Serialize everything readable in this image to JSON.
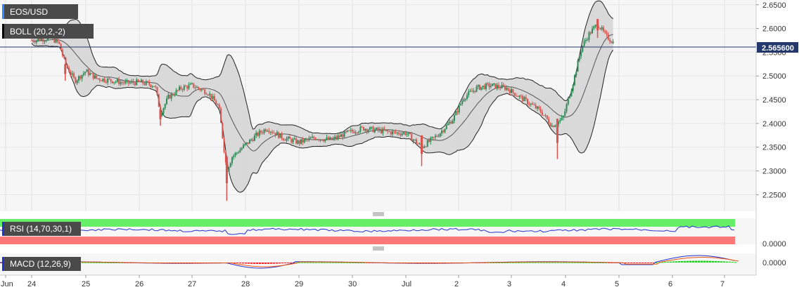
{
  "chart_data": {
    "type": "candlestick",
    "symbol": "EOS/USD",
    "indicators": {
      "bollinger": "BOLL (20,2,-2)",
      "rsi": "RSI (14,70,30,1)",
      "macd": "MACD (12,26,9)"
    },
    "current_price": "2.565600",
    "x_ticks": [
      "Jun",
      "24",
      "25",
      "26",
      "27",
      "28",
      "29",
      "30",
      "Jul",
      "2",
      "3",
      "4",
      "5",
      "6",
      "7"
    ],
    "y_ticks": [
      "2.6500",
      "2.6000",
      "2.5500",
      "2.5000",
      "2.4500",
      "2.4000",
      "2.3500",
      "2.3000",
      "2.2500"
    ],
    "y_range": [
      2.215,
      2.66
    ],
    "rsi_axis_label": "0.0000",
    "macd_axis_label": "0.0000",
    "price_path": [
      [
        0.0,
        2.575
      ],
      [
        0.35,
        2.58
      ],
      [
        0.5,
        2.57
      ],
      [
        0.62,
        2.525
      ],
      [
        0.8,
        2.49
      ],
      [
        1.0,
        2.51
      ],
      [
        1.2,
        2.495
      ],
      [
        1.5,
        2.49
      ],
      [
        1.75,
        2.485
      ],
      [
        2.0,
        2.487
      ],
      [
        2.3,
        2.48
      ],
      [
        2.4,
        2.42
      ],
      [
        2.55,
        2.455
      ],
      [
        2.8,
        2.475
      ],
      [
        3.0,
        2.48
      ],
      [
        3.3,
        2.465
      ],
      [
        3.5,
        2.435
      ],
      [
        3.65,
        2.3
      ],
      [
        3.75,
        2.33
      ],
      [
        4.0,
        2.355
      ],
      [
        4.2,
        2.375
      ],
      [
        4.4,
        2.39
      ],
      [
        4.7,
        2.37
      ],
      [
        5.0,
        2.36
      ],
      [
        5.3,
        2.37
      ],
      [
        5.6,
        2.365
      ],
      [
        5.9,
        2.38
      ],
      [
        6.2,
        2.39
      ],
      [
        6.5,
        2.385
      ],
      [
        6.8,
        2.38
      ],
      [
        7.0,
        2.38
      ],
      [
        7.3,
        2.35
      ],
      [
        7.6,
        2.375
      ],
      [
        7.9,
        2.41
      ],
      [
        8.1,
        2.455
      ],
      [
        8.35,
        2.475
      ],
      [
        8.6,
        2.48
      ],
      [
        8.9,
        2.475
      ],
      [
        9.1,
        2.46
      ],
      [
        9.3,
        2.445
      ],
      [
        9.55,
        2.425
      ],
      [
        9.75,
        2.395
      ],
      [
        9.95,
        2.41
      ],
      [
        10.15,
        2.49
      ],
      [
        10.3,
        2.56
      ],
      [
        10.45,
        2.59
      ],
      [
        10.6,
        2.61
      ],
      [
        10.75,
        2.585
      ],
      [
        10.9,
        2.57
      ]
    ],
    "spikes": [
      [
        0.62,
        2.525,
        2.49
      ],
      [
        2.4,
        2.43,
        2.395
      ],
      [
        3.65,
        2.33,
        2.237
      ],
      [
        7.3,
        2.375,
        2.31
      ],
      [
        9.85,
        2.41,
        2.325
      ],
      [
        10.6,
        2.62,
        2.58
      ]
    ]
  }
}
